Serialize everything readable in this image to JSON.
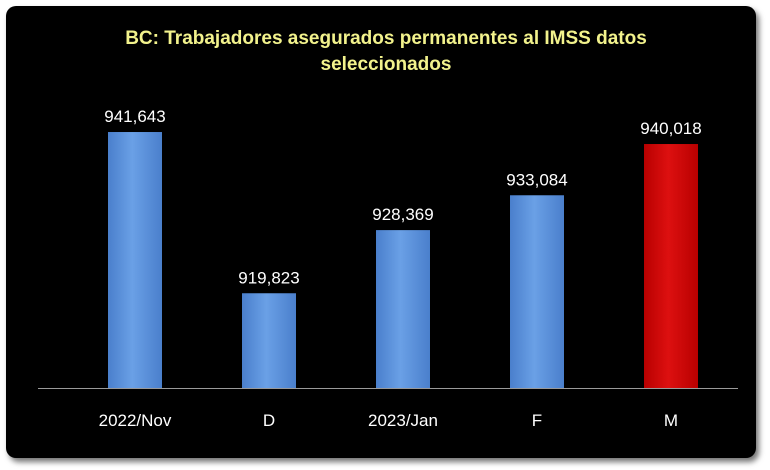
{
  "chart_data": {
    "type": "bar",
    "title": "BC: Trabajadores asegurados permanentes al IMSS datos seleccionados",
    "categories": [
      "2022/Nov",
      "D",
      "2023/Jan",
      "F",
      "M"
    ],
    "values": [
      941643,
      919823,
      928369,
      933084,
      940018
    ],
    "data_labels": [
      "941,643",
      "919,823",
      "928,369",
      "933,084",
      "940,018"
    ],
    "bar_colors": [
      "#5b8fd8",
      "#5b8fd8",
      "#5b8fd8",
      "#5b8fd8",
      "#cc0000"
    ],
    "xlabel": "",
    "ylabel": "",
    "ylim": [
      907000,
      943000
    ],
    "grid": false,
    "legend": "none",
    "background": "#000000",
    "title_color": "#f2f28c"
  }
}
